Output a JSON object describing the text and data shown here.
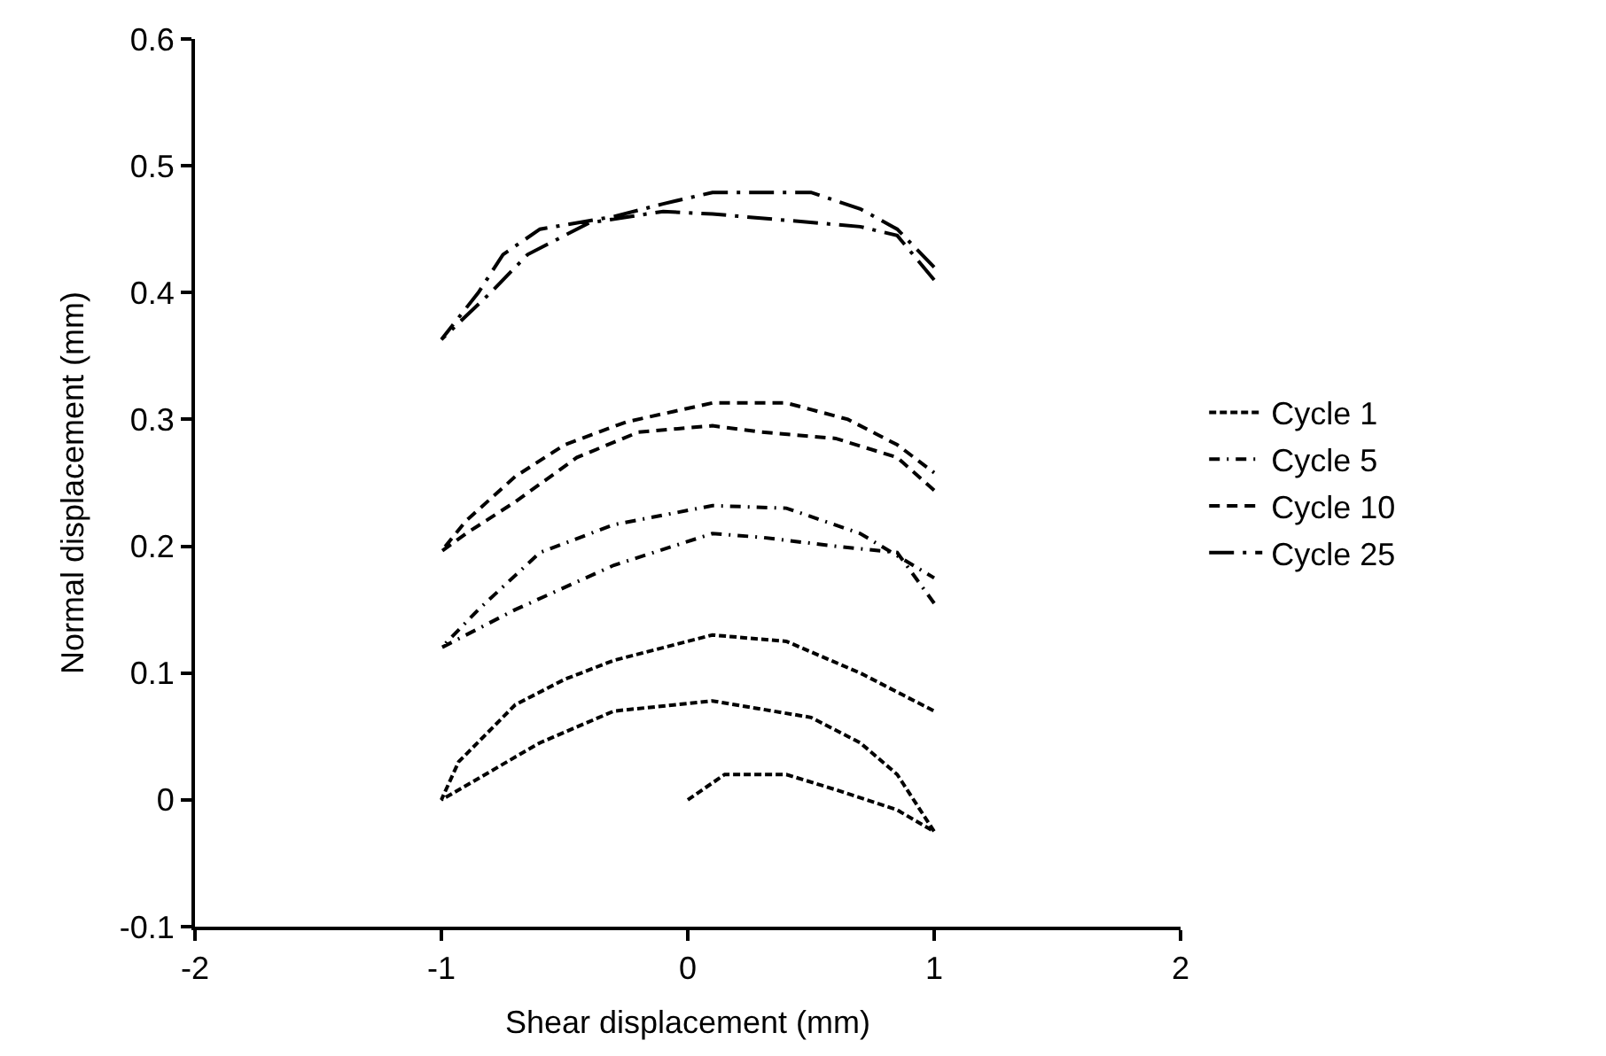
{
  "chart_data": {
    "type": "line",
    "xlabel": "Shear displacement (mm)",
    "ylabel": "Normal displacement (mm)",
    "xlim": [
      -2,
      2
    ],
    "xticks": [
      -2,
      -1,
      0,
      1,
      2
    ],
    "ylim": [
      -0.1,
      0.6
    ],
    "yticks": [
      -0.1,
      0,
      0.1,
      0.2,
      0.3,
      0.4,
      0.5,
      0.6
    ],
    "legend": "right",
    "marker": "none",
    "series": [
      {
        "name": "Cycle 1",
        "color": "#000000",
        "line_style": "dotted",
        "x": [
          0,
          0.15,
          0.4,
          0.6,
          0.85,
          1,
          0.85,
          0.7,
          0.5,
          0.1,
          -0.3,
          -0.6,
          -1,
          -0.93,
          -0.7,
          -0.5,
          -0.3,
          0.1,
          0.4,
          0.7,
          1
        ],
        "values": [
          0,
          0.02,
          0.02,
          0.008,
          -0.008,
          -0.025,
          0.02,
          0.045,
          0.065,
          0.078,
          0.07,
          0.045,
          0,
          0.03,
          0.075,
          0.095,
          0.11,
          0.13,
          0.125,
          0.1,
          0.07
        ]
      },
      {
        "name": "Cycle 5",
        "color": "#000000",
        "line_style": "dashdot",
        "x": [
          1,
          0.85,
          0.6,
          0.3,
          0.1,
          -0.3,
          -0.7,
          -1,
          -0.85,
          -0.6,
          -0.3,
          0.1,
          0.4,
          0.7,
          1
        ],
        "values": [
          0.155,
          0.195,
          0.2,
          0.207,
          0.21,
          0.185,
          0.15,
          0.12,
          0.15,
          0.195,
          0.217,
          0.232,
          0.23,
          0.21,
          0.175
        ]
      },
      {
        "name": "Cycle 10",
        "color": "#000000",
        "line_style": "dashed",
        "x": [
          1,
          0.85,
          0.6,
          0.3,
          0.1,
          -0.2,
          -0.45,
          -0.7,
          -0.9,
          -1,
          -0.9,
          -0.7,
          -0.5,
          -0.25,
          0.1,
          0.4,
          0.65,
          0.85,
          1
        ],
        "values": [
          0.244,
          0.27,
          0.285,
          0.29,
          0.295,
          0.29,
          0.27,
          0.235,
          0.21,
          0.196,
          0.22,
          0.255,
          0.28,
          0.298,
          0.313,
          0.313,
          0.3,
          0.28,
          0.258
        ]
      },
      {
        "name": "Cycle 25",
        "color": "#000000",
        "line_style": "longdashdot",
        "x": [
          1,
          0.85,
          0.7,
          0.4,
          0.1,
          -0.1,
          -0.4,
          -0.65,
          -0.8,
          -1,
          -0.85,
          -0.75,
          -0.6,
          -0.3,
          -0.1,
          0.1,
          0.5,
          0.7,
          0.85,
          1
        ],
        "values": [
          0.41,
          0.445,
          0.452,
          0.457,
          0.462,
          0.464,
          0.455,
          0.43,
          0.4,
          0.363,
          0.4,
          0.43,
          0.45,
          0.46,
          0.47,
          0.479,
          0.479,
          0.466,
          0.45,
          0.42
        ]
      }
    ]
  }
}
